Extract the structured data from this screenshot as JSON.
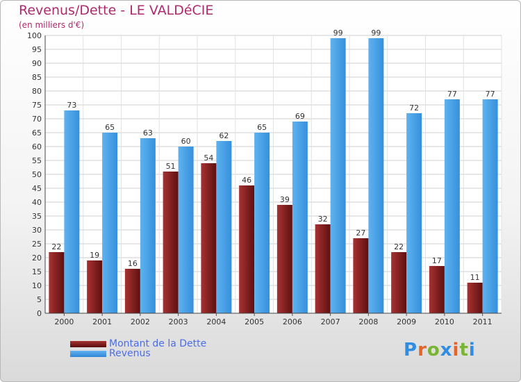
{
  "title": "Revenus/Dette - LE VALDéCIE",
  "subtitle": "(en milliers d'€)",
  "brand": {
    "text": "Proxiti",
    "colors": [
      "#2f8de4",
      "#e3652a",
      "#79b532",
      "#2f8de4",
      "#e3652a",
      "#79b532",
      "#2f8de4"
    ]
  },
  "colors": {
    "debt": "#8e2424",
    "revenue": "#4aa3e9",
    "title": "#b0296e",
    "legend_text": "#4b6ee8"
  },
  "chart_data": {
    "type": "bar",
    "title": "Revenus/Dette - LE VALDéCIE",
    "subtitle": "(en milliers d'€)",
    "categories": [
      "2000",
      "2001",
      "2002",
      "2003",
      "2004",
      "2005",
      "2006",
      "2007",
      "2008",
      "2009",
      "2010",
      "2011"
    ],
    "series": [
      {
        "name": "Montant de la Dette",
        "values": [
          22,
          19,
          16,
          51,
          54,
          46,
          39,
          32,
          27,
          22,
          17,
          11
        ]
      },
      {
        "name": "Revenus",
        "values": [
          73,
          65,
          63,
          60,
          62,
          65,
          69,
          99,
          99,
          72,
          77,
          77
        ]
      }
    ],
    "ylim": [
      0,
      100
    ],
    "ytick_step": 5,
    "grid": true,
    "legend_placement": "bottom-left",
    "data_labels": true
  }
}
